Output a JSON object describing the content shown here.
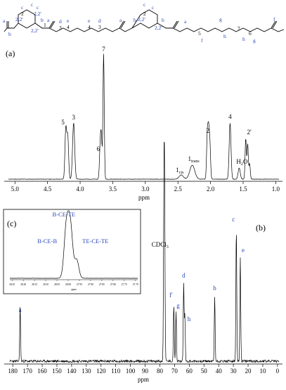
{
  "structure": {
    "labels": [
      {
        "t": "a",
        "c": "blue"
      },
      {
        "t": "b",
        "c": "blue"
      },
      {
        "t": "c",
        "c": "blue"
      },
      {
        "t": "2",
        "c": "blk"
      },
      {
        "t": "2,2'",
        "c": "blue"
      },
      {
        "t": "c",
        "c": "blue"
      },
      {
        "t": "2,2'",
        "c": "blue"
      },
      {
        "t": "c",
        "c": "blue"
      },
      {
        "t": "2,2'",
        "c": "blue"
      },
      {
        "t": "b",
        "c": "blue"
      },
      {
        "t": "1",
        "c": "blk"
      },
      {
        "t": "a",
        "c": "blue"
      },
      {
        "t": "d",
        "c": "blue"
      },
      {
        "t": "3",
        "c": "blk"
      },
      {
        "t": "e",
        "c": "blue"
      },
      {
        "t": "4",
        "c": "blk"
      },
      {
        "t": "e",
        "c": "blue"
      },
      {
        "t": "4",
        "c": "blk"
      },
      {
        "t": "d",
        "c": "blue"
      },
      {
        "t": "3",
        "c": "blk"
      },
      {
        "t": "a",
        "c": "blue"
      },
      {
        "t": "b",
        "c": "blue"
      },
      {
        "t": "c",
        "c": "blue"
      },
      {
        "t": "2",
        "c": "blk"
      },
      {
        "t": "2,2'",
        "c": "blue"
      },
      {
        "t": "c",
        "c": "blue"
      },
      {
        "t": "2,2'",
        "c": "blue"
      },
      {
        "t": "b",
        "c": "blue"
      },
      {
        "t": "a",
        "c": "blue"
      },
      {
        "t": "5",
        "c": "blk"
      },
      {
        "t": "f",
        "c": "blue"
      },
      {
        "t": "g",
        "c": "blue"
      },
      {
        "t": "h",
        "c": "blue"
      },
      {
        "t": "7",
        "c": "blk"
      },
      {
        "t": "h",
        "c": "blue"
      },
      {
        "t": "6",
        "c": "blk"
      },
      {
        "t": "g",
        "c": "blue"
      },
      {
        "t": "f",
        "c": "blue"
      }
    ]
  },
  "panel_a": {
    "tag": "(a)",
    "xlabel": "ppm",
    "x_ticks": [
      "5.0",
      "4.5",
      "4.0",
      "3.5",
      "3.0",
      "2.5",
      "2.0",
      "1.5",
      "1.0"
    ]
  },
  "panel_b": {
    "tag": "(b)",
    "xlabel": "ppm",
    "x_ticks": [
      "180",
      "170",
      "160",
      "150",
      "140",
      "130",
      "120",
      "110",
      "100",
      "90",
      "80",
      "70",
      "60",
      "50",
      "40",
      "30",
      "20",
      "10",
      "0"
    ]
  },
  "panel_c": {
    "tag": "(c)",
    "xlabel": "ppm",
    "x_ticks": [
      "28.25",
      "28.20",
      "28.15",
      "28.10",
      "28.05",
      "28.00",
      "27.95",
      "27.90",
      "27.85",
      "27.80",
      "27.75",
      "27.70"
    ]
  },
  "chart_data": [
    {
      "type": "line",
      "panel": "(a)",
      "xlabel": "ppm",
      "xlim": [
        5.0,
        1.0
      ],
      "peaks": [
        {
          "x": 4.22,
          "label": "5"
        },
        {
          "x": 4.1,
          "label": "3"
        },
        {
          "x": 3.69,
          "label": "6"
        },
        {
          "x": 3.64,
          "label": "7"
        },
        {
          "x": 2.45,
          "label": "1cis"
        },
        {
          "x": 2.28,
          "label": "1trans"
        },
        {
          "x": 2.04,
          "label": "2"
        },
        {
          "x": 1.7,
          "label": "4"
        },
        {
          "x": 1.56,
          "label": "H2O"
        },
        {
          "x": 1.44,
          "label": "2'"
        }
      ]
    },
    {
      "type": "line",
      "panel": "(b)",
      "xlabel": "ppm",
      "xlim": [
        180,
        0
      ],
      "peaks": [
        {
          "x": 175.0,
          "label": "a"
        },
        {
          "x": 77.0,
          "label": "CDCl3"
        },
        {
          "x": 70.5,
          "label": "f'"
        },
        {
          "x": 69.0,
          "label": "g"
        },
        {
          "x": 63.8,
          "label": "d"
        },
        {
          "x": 63.0,
          "label": "h"
        },
        {
          "x": 42.7,
          "label": "b"
        },
        {
          "x": 28.0,
          "label": "c"
        },
        {
          "x": 25.3,
          "label": "e"
        }
      ]
    },
    {
      "type": "line",
      "panel": "(c)",
      "xlabel": "ppm",
      "xlim": [
        28.25,
        27.7
      ],
      "peaks": [
        {
          "x": 28.01,
          "label": "B-CE-TE"
        },
        {
          "x": 27.99,
          "label": "B-CE-B"
        },
        {
          "x": 27.96,
          "label": "TE-CE-TE"
        }
      ]
    }
  ]
}
